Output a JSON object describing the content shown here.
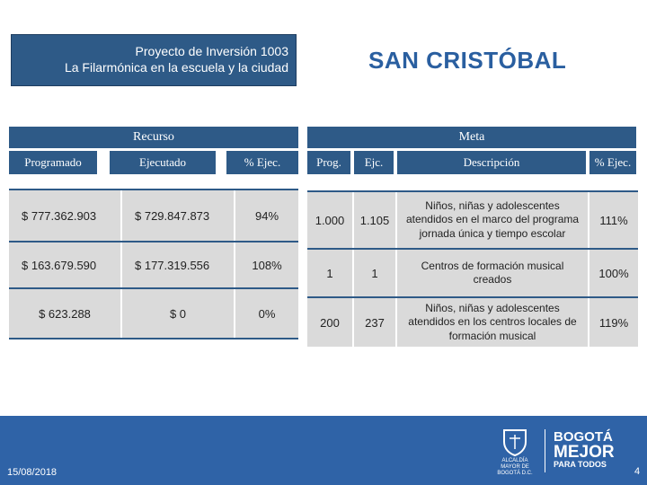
{
  "project": {
    "line1": "Proyecto de Inversión 1003",
    "line2": "La Filarmónica en la escuela y la ciudad"
  },
  "title": "SAN CRISTÓBAL",
  "recurso": {
    "header": "Recurso",
    "columns": [
      "Programado",
      "Ejecutado",
      "% Ejec."
    ],
    "rows": [
      [
        "$ 777.362.903",
        "$ 729.847.873",
        "94%"
      ],
      [
        "$ 163.679.590",
        "$ 177.319.556",
        "108%"
      ],
      [
        "$ 623.288",
        "$ 0",
        "0%"
      ]
    ]
  },
  "meta": {
    "header": "Meta",
    "columns": [
      "Prog.",
      "Ejc.",
      "Descripción",
      "% Ejec."
    ],
    "rows": [
      [
        "1.000",
        "1.105",
        "Niños, niñas y adolescentes atendidos en el marco del programa jornada única y tiempo escolar",
        "111%"
      ],
      [
        "1",
        "1",
        "Centros de formación musical creados",
        "100%"
      ],
      [
        "200",
        "237",
        "Niños, niñas y adolescentes atendidos en los centros locales de formación musical",
        "119%"
      ]
    ]
  },
  "footer": {
    "date": "15/08/2018",
    "page": "4",
    "seal": "ALCALDÍA MAYOR DE BOGOTÁ D.C.",
    "logo_l1": "BOGOTÁ",
    "logo_l2": "MEJOR",
    "logo_l3": "PARA TODOS"
  },
  "colors": {
    "header_blue": "#2e5a87",
    "cell_gray": "#dadada",
    "footer_blue": "#2f63a7",
    "title_blue": "#2a5fa0"
  }
}
